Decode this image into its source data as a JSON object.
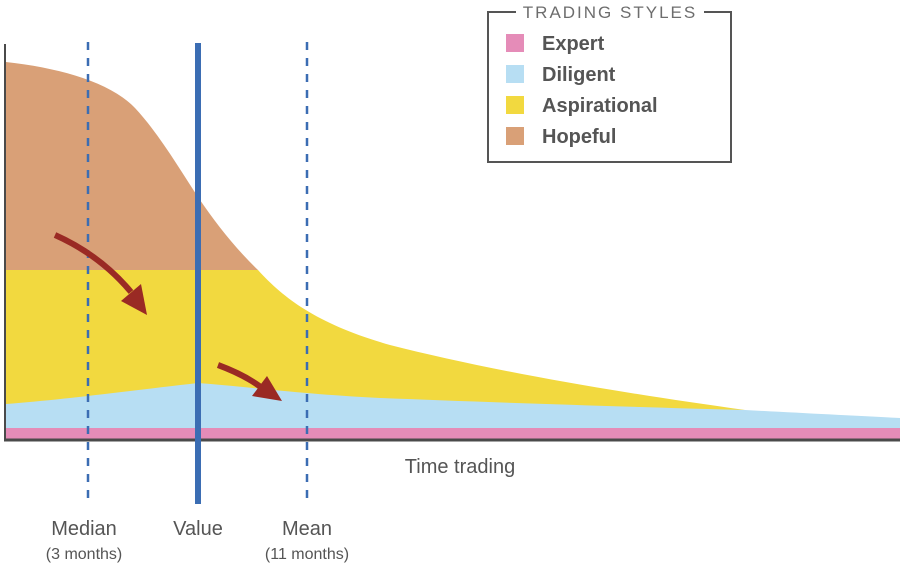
{
  "colors": {
    "expert": "#e58cb8",
    "diligent": "#b7def3",
    "aspirational": "#f2d93f",
    "hopeful": "#d9a077",
    "marker": "#3b6db3",
    "arrow": "#9a2a24",
    "axis": "#4a4a4a"
  },
  "legend": {
    "title": "TRADING STYLES",
    "items": [
      {
        "label": "Expert",
        "color": "#e58cb8"
      },
      {
        "label": "Diligent",
        "color": "#b7def3"
      },
      {
        "label": "Aspirational",
        "color": "#f2d93f"
      },
      {
        "label": "Hopeful",
        "color": "#d9a077"
      }
    ]
  },
  "axis": {
    "x_label": "Time trading"
  },
  "markers": {
    "median": {
      "label": "Median",
      "sub": "(3 months)"
    },
    "value": {
      "label": "Value"
    },
    "mean": {
      "label": "Mean",
      "sub": "(11 months)"
    }
  }
}
